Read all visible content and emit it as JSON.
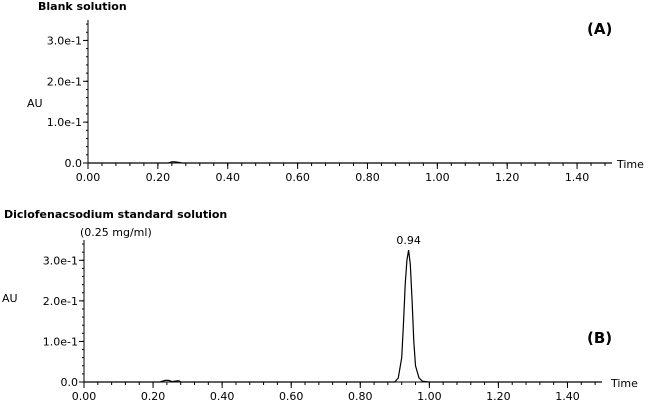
{
  "chart_data": [
    {
      "type": "line",
      "panel_label": "(A)",
      "title": "Blank solution",
      "subtitle": "",
      "xlabel": "Time",
      "ylabel": "AU",
      "xlim": [
        0,
        1.5
      ],
      "ylim": [
        0,
        0.35
      ],
      "x_ticks": [
        0,
        0.2,
        0.4,
        0.6,
        0.8,
        1.0,
        1.2,
        1.4
      ],
      "x_tick_labels": [
        "0.00",
        "0.20",
        "0.40",
        "0.60",
        "0.80",
        "1.00",
        "1.20",
        "1.40"
      ],
      "y_ticks": [
        0,
        0.1,
        0.2,
        0.3
      ],
      "y_tick_labels": [
        "0.0",
        "1.0e-1",
        "2.0e-1",
        "3.0e-1"
      ],
      "series": [
        {
          "x": [
            0,
            0.2,
            0.23,
            0.24,
            0.25,
            0.27,
            0.5,
            1.0,
            1.5
          ],
          "y": [
            0,
            0,
            0,
            0.003,
            0.003,
            0,
            0,
            0,
            0
          ]
        }
      ],
      "annotations": []
    },
    {
      "type": "line",
      "panel_label": "(B)",
      "title": "Diclofenacsodium standard solution",
      "subtitle": "(0.25 mg/ml)",
      "xlabel": "Time",
      "ylabel": "AU",
      "xlim": [
        0,
        1.5
      ],
      "ylim": [
        0,
        0.35
      ],
      "x_ticks": [
        0,
        0.2,
        0.4,
        0.6,
        0.8,
        1.0,
        1.2,
        1.4
      ],
      "x_tick_labels": [
        "0.00",
        "0.20",
        "0.40",
        "0.60",
        "0.80",
        "1.00",
        "1.20",
        "1.40"
      ],
      "y_ticks": [
        0,
        0.1,
        0.2,
        0.3
      ],
      "y_tick_labels": [
        "0.0",
        "1.0e-1",
        "2.0e-1",
        "3.0e-1"
      ],
      "series": [
        {
          "x": [
            0,
            0.22,
            0.235,
            0.245,
            0.255,
            0.27,
            0.275,
            0.28,
            0.5,
            0.85,
            0.9,
            0.91,
            0.92,
            0.925,
            0.93,
            0.935,
            0.94,
            0.945,
            0.95,
            0.955,
            0.96,
            0.97,
            0.98,
            1.0,
            1.5
          ],
          "y": [
            0,
            0,
            0.004,
            0.004,
            0.001,
            0.003,
            0.003,
            0,
            0,
            0,
            0,
            0.01,
            0.06,
            0.14,
            0.24,
            0.3,
            0.325,
            0.29,
            0.2,
            0.1,
            0.04,
            0.01,
            0.002,
            0,
            0
          ]
        }
      ],
      "annotations": [
        {
          "text": "0.94",
          "x": 0.94,
          "y": 0.325
        }
      ]
    }
  ]
}
